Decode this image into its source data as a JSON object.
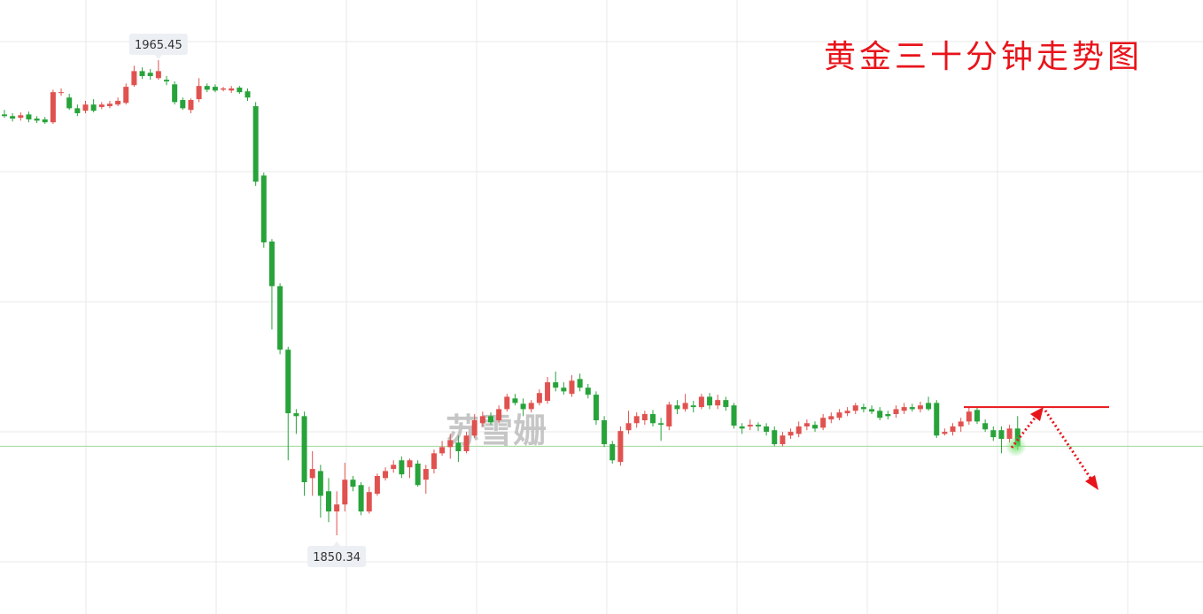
{
  "chart_data": {
    "type": "candlestick",
    "title": "黄金三十分钟走势图",
    "watermark": "苏雪姗",
    "open": [
      1952.3,
      1951.9,
      1951.5,
      1952.3,
      1951.3,
      1951.1,
      1950.4,
      1957.5,
      1956.4,
      1953.8,
      1953.2,
      1954.7,
      1954.1,
      1954.3,
      1954.7,
      1955.1,
      1959.4,
      1962.8,
      1962.4,
      1961.1,
      1960.7,
      1959.6,
      1955.8,
      1953.4,
      1956.0,
      1959.2,
      1959.0,
      1958.3,
      1958.1,
      1958.8,
      1957.9,
      1954.3,
      1937.5,
      1921.5,
      1910.7,
      1895.3,
      1879.9,
      1879.2,
      1864.2,
      1865.9,
      1861.0,
      1856.1,
      1857.8,
      1863.8,
      1862.5,
      1856.1,
      1860.4,
      1864.2,
      1866.4,
      1868.5,
      1866.8,
      1867.7,
      1863.8,
      1866.4,
      1870.2,
      1871.7,
      1872.8,
      1870.7,
      1874.5,
      1877.5,
      1879.2,
      1878.2,
      1880.9,
      1883.5,
      1882.2,
      1880.9,
      1882.4,
      1882.9,
      1887.4,
      1886.1,
      1884.6,
      1888.2,
      1886.1,
      1884.4,
      1878.2,
      1872.4,
      1868.1,
      1875.8,
      1877.5,
      1878.2,
      1879.7,
      1877.5,
      1876.7,
      1881.8,
      1880.9,
      1881.8,
      1881.4,
      1883.9,
      1881.8,
      1883.1,
      1881.8,
      1876.7,
      1876.7,
      1877.1,
      1876.7,
      1875.8,
      1872.4,
      1874.5,
      1874.9,
      1876.7,
      1877.1,
      1876.4,
      1878.4,
      1878.8,
      1879.9,
      1880.5,
      1881.4,
      1880.9,
      1880.5,
      1879.7,
      1879.7,
      1880.5,
      1881.4,
      1880.9,
      1882.4,
      1882.4,
      1874.9,
      1875.4,
      1876.7,
      1877.9,
      1880.7,
      1877.5,
      1875.8,
      1875.8,
      1873.7,
      1876.2
    ],
    "high": [
      1953.4,
      1952.6,
      1952.8,
      1953.0,
      1951.9,
      1951.7,
      1958.3,
      1958.6,
      1957.3,
      1954.7,
      1955.6,
      1956.0,
      1955.3,
      1955.6,
      1956.4,
      1959.8,
      1964.1,
      1963.7,
      1963.3,
      1965.45,
      1961.6,
      1960.3,
      1956.4,
      1956.2,
      1961.1,
      1959.8,
      1959.6,
      1959.0,
      1959.2,
      1959.2,
      1958.6,
      1955.3,
      1938.2,
      1922.1,
      1911.4,
      1896.0,
      1880.9,
      1880.3,
      1870.7,
      1867.4,
      1864.2,
      1861.0,
      1867.9,
      1864.7,
      1863.2,
      1862.1,
      1865.3,
      1866.8,
      1868.5,
      1869.4,
      1868.9,
      1868.5,
      1867.4,
      1871.1,
      1873.2,
      1874.9,
      1874.5,
      1875.4,
      1879.7,
      1880.3,
      1880.1,
      1881.8,
      1884.6,
      1884.6,
      1883.5,
      1883.1,
      1885.7,
      1888.7,
      1890.0,
      1887.4,
      1889.1,
      1889.5,
      1887.0,
      1885.2,
      1879.2,
      1873.2,
      1876.7,
      1880.5,
      1880.1,
      1880.5,
      1880.7,
      1878.8,
      1882.7,
      1883.1,
      1884.6,
      1882.9,
      1884.6,
      1884.8,
      1884.4,
      1883.9,
      1882.4,
      1877.5,
      1878.4,
      1877.7,
      1877.5,
      1876.7,
      1875.4,
      1876.2,
      1877.9,
      1878.4,
      1877.9,
      1879.7,
      1880.1,
      1880.9,
      1881.4,
      1882.4,
      1882.2,
      1881.8,
      1881.4,
      1880.5,
      1881.8,
      1882.4,
      1882.2,
      1882.7,
      1883.9,
      1883.1,
      1876.2,
      1877.5,
      1878.8,
      1881.4,
      1881.4,
      1878.4,
      1876.7,
      1876.7,
      1877.1,
      1879.2
    ],
    "low": [
      1951.5,
      1950.6,
      1950.8,
      1950.4,
      1950.2,
      1950.0,
      1950.0,
      1956.8,
      1953.4,
      1951.9,
      1952.6,
      1952.8,
      1953.6,
      1953.8,
      1954.3,
      1954.7,
      1959.0,
      1960.9,
      1960.7,
      1960.7,
      1959.4,
      1954.7,
      1953.4,
      1952.6,
      1955.3,
      1957.7,
      1957.7,
      1957.9,
      1957.5,
      1957.3,
      1955.6,
      1935.0,
      1920.0,
      1900.2,
      1894.2,
      1868.5,
      1874.9,
      1859.9,
      1859.9,
      1854.6,
      1853.5,
      1850.34,
      1856.1,
      1861.0,
      1855.2,
      1855.6,
      1859.9,
      1863.6,
      1865.5,
      1864.2,
      1864.2,
      1862.1,
      1860.4,
      1865.3,
      1869.6,
      1868.9,
      1868.1,
      1870.2,
      1873.9,
      1876.7,
      1877.1,
      1877.5,
      1880.3,
      1881.8,
      1879.2,
      1880.1,
      1881.8,
      1882.2,
      1885.2,
      1884.4,
      1883.9,
      1885.2,
      1883.5,
      1877.1,
      1871.7,
      1867.7,
      1867.2,
      1874.9,
      1876.4,
      1877.1,
      1876.7,
      1873.2,
      1875.8,
      1879.7,
      1880.3,
      1880.1,
      1880.9,
      1880.9,
      1880.9,
      1880.5,
      1876.2,
      1874.9,
      1875.8,
      1875.6,
      1874.5,
      1871.9,
      1871.9,
      1873.7,
      1874.1,
      1875.8,
      1875.4,
      1875.8,
      1877.5,
      1878.2,
      1879.2,
      1879.7,
      1880.1,
      1879.7,
      1878.2,
      1878.4,
      1878.8,
      1879.7,
      1880.3,
      1880.1,
      1880.5,
      1873.9,
      1874.5,
      1874.5,
      1875.4,
      1877.1,
      1877.3,
      1875.4,
      1873.2,
      1870.2,
      1872.8,
      1871.1
    ],
    "close": [
      1951.9,
      1951.3,
      1952.1,
      1951.1,
      1950.8,
      1950.4,
      1957.7,
      1957.7,
      1953.8,
      1952.6,
      1954.7,
      1953.2,
      1954.7,
      1954.9,
      1955.6,
      1959.0,
      1962.8,
      1961.6,
      1961.6,
      1962.8,
      1960.3,
      1955.3,
      1953.8,
      1955.8,
      1959.2,
      1958.3,
      1958.1,
      1958.6,
      1958.6,
      1957.7,
      1956.4,
      1936.0,
      1921.3,
      1910.7,
      1895.3,
      1879.9,
      1879.2,
      1863.2,
      1866.4,
      1859.9,
      1856.1,
      1857.8,
      1863.8,
      1862.1,
      1856.1,
      1860.8,
      1864.7,
      1865.9,
      1867.4,
      1865.1,
      1868.5,
      1862.5,
      1866.4,
      1870.2,
      1871.7,
      1873.4,
      1870.7,
      1874.5,
      1878.2,
      1879.2,
      1877.7,
      1880.9,
      1883.9,
      1882.4,
      1880.9,
      1882.4,
      1884.8,
      1887.4,
      1886.1,
      1885.2,
      1887.8,
      1886.1,
      1884.4,
      1878.2,
      1872.4,
      1868.5,
      1875.6,
      1877.5,
      1879.2,
      1879.7,
      1877.5,
      1877.1,
      1882.0,
      1880.9,
      1882.4,
      1881.4,
      1883.9,
      1881.8,
      1883.1,
      1881.4,
      1876.9,
      1876.2,
      1877.1,
      1876.7,
      1875.4,
      1872.4,
      1874.5,
      1875.4,
      1876.7,
      1877.5,
      1876.2,
      1878.8,
      1879.2,
      1880.1,
      1880.5,
      1881.8,
      1880.9,
      1880.3,
      1878.8,
      1879.2,
      1880.9,
      1881.4,
      1880.9,
      1881.8,
      1880.9,
      1874.5,
      1875.4,
      1876.7,
      1877.9,
      1880.3,
      1877.9,
      1876.0,
      1874.1,
      1873.7,
      1876.2,
      1871.9
    ],
    "up_color": "#e0524f",
    "down_color": "#27a33a",
    "price_line_color": "#9fd69a",
    "resistance_line": 1881.4,
    "annotation_color": "#e8141a",
    "ylim": [
      1831.26,
      1980.03
    ],
    "grid": true
  }
}
